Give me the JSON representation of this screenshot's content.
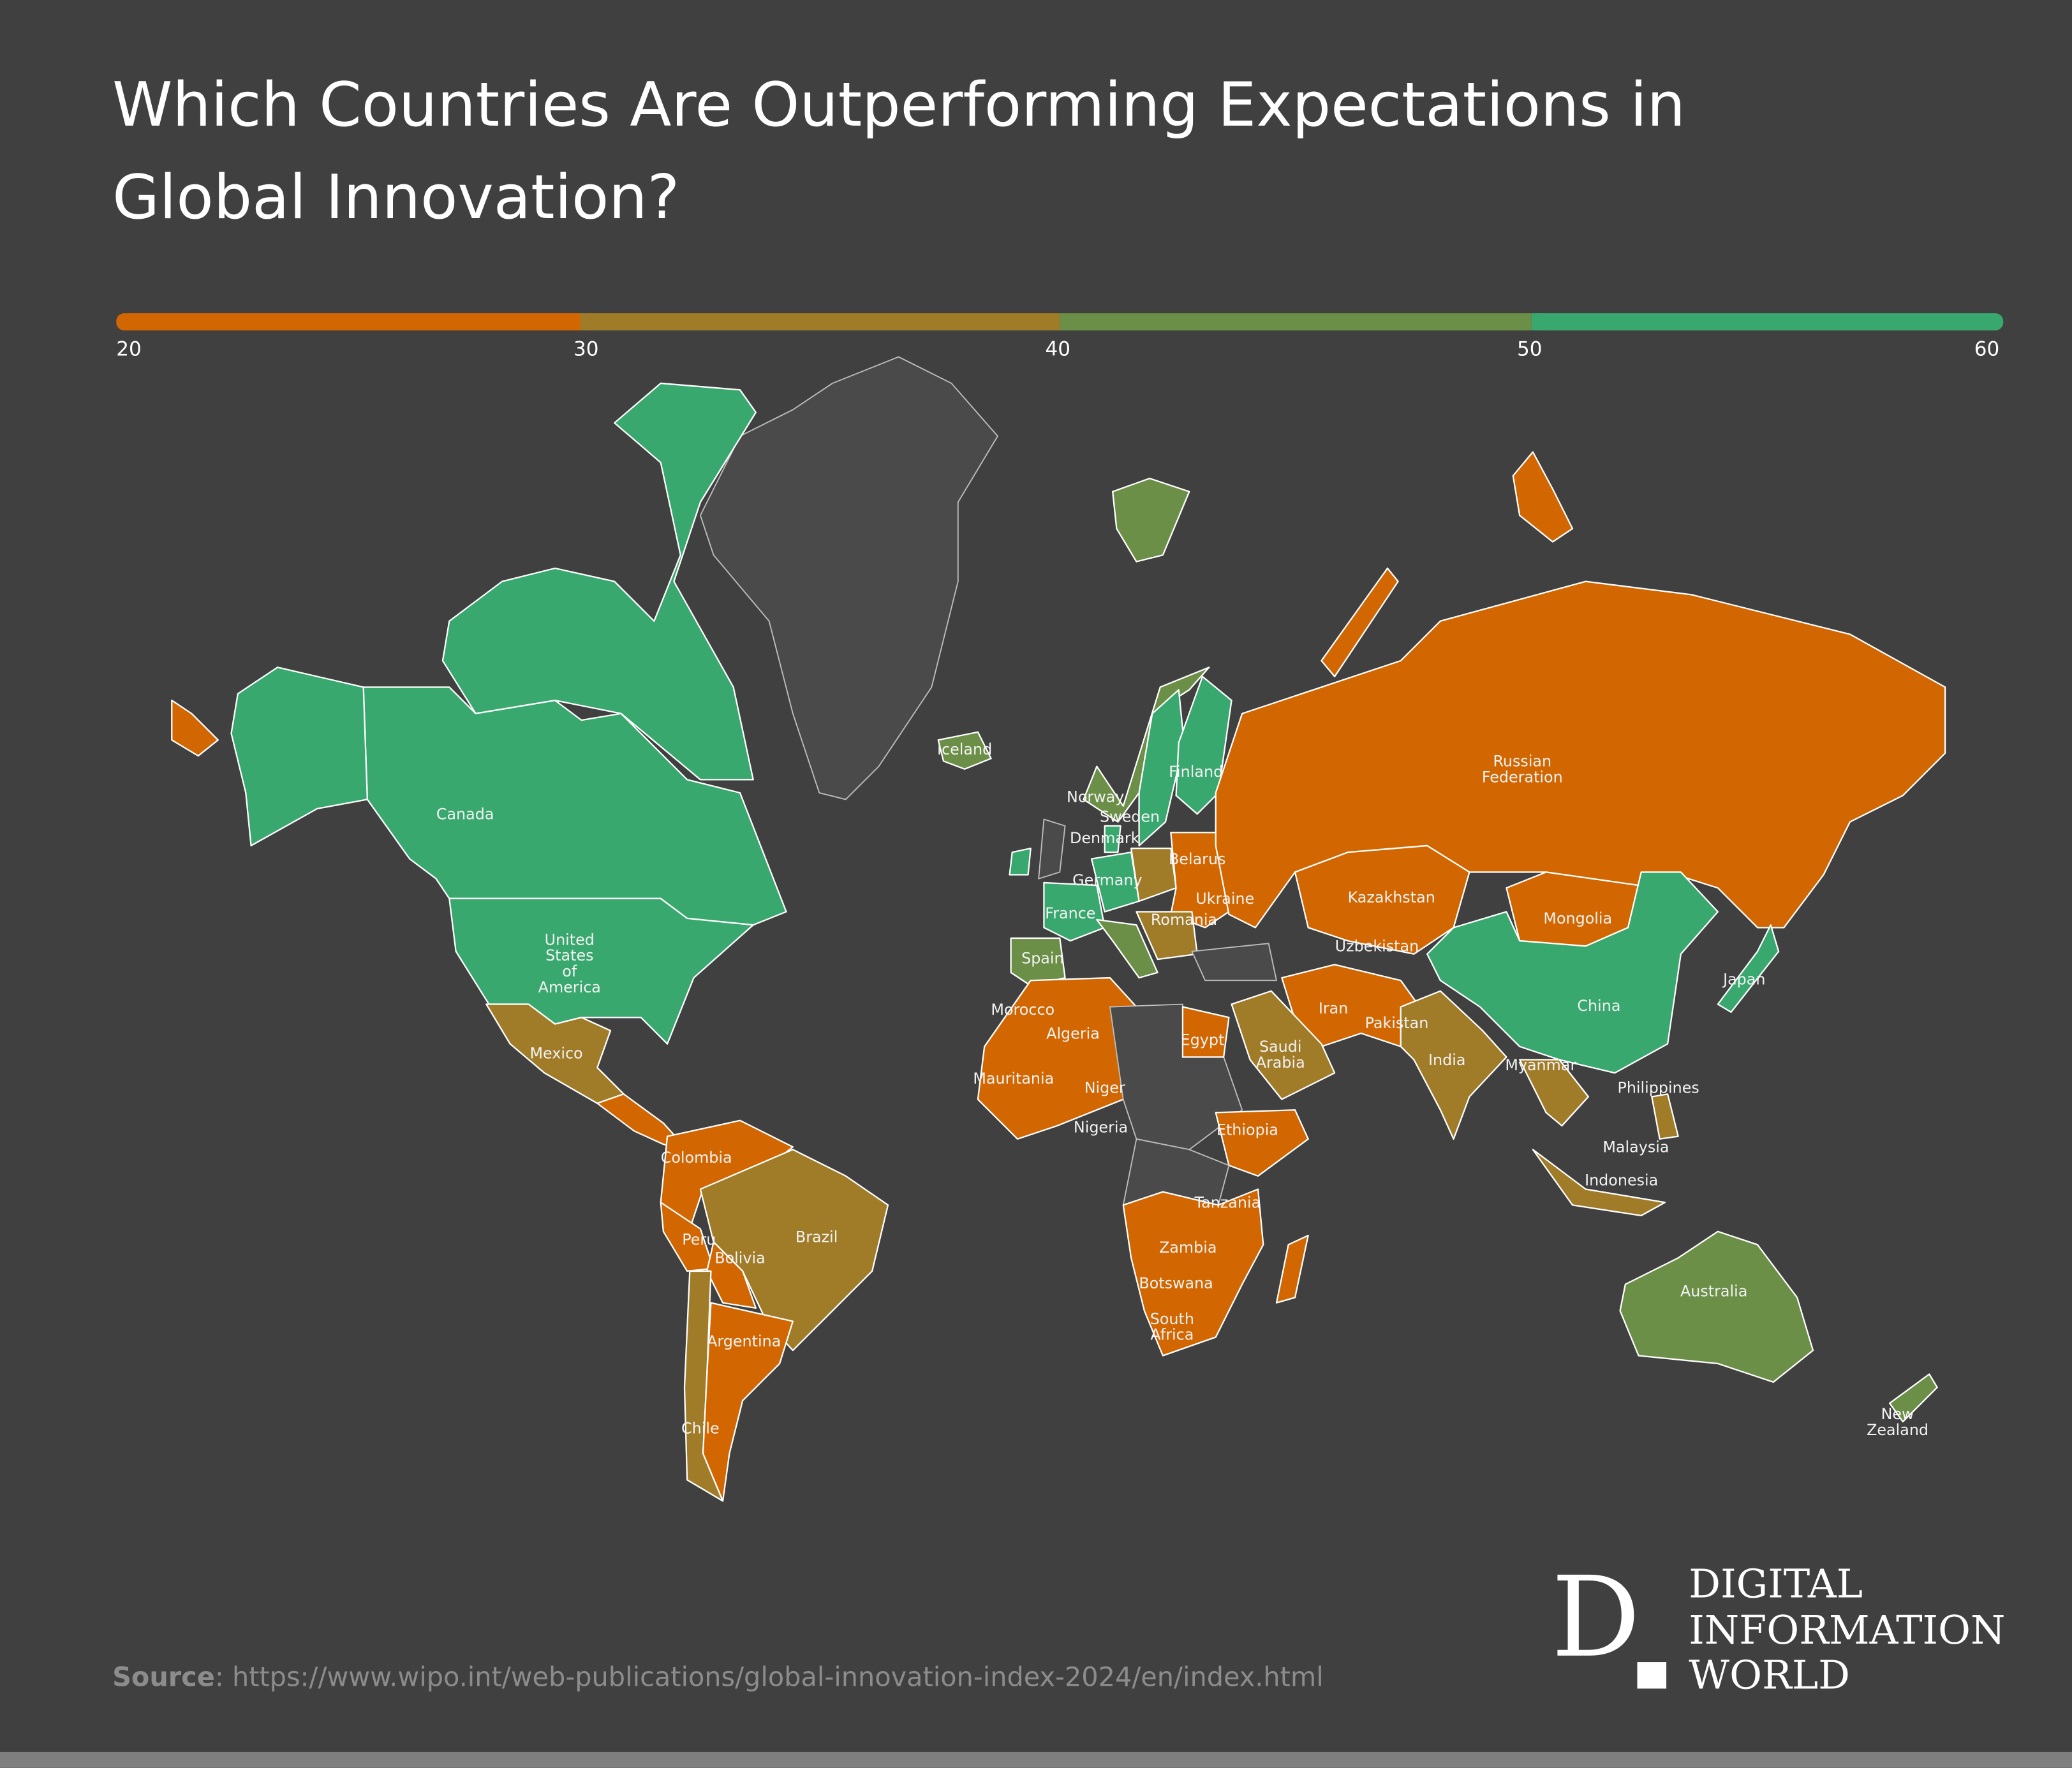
{
  "title": {
    "line1": "Which Countries Are Outperforming Expectations in",
    "line2": "Global Innovation?"
  },
  "legend": {
    "ticks": [
      "20",
      "30",
      "40",
      "50",
      "60"
    ],
    "colors": [
      "#D26600",
      "#A07B28",
      "#6B8F47",
      "#38A86E"
    ]
  },
  "countries": {
    "canada": "Canada",
    "usa_1": "United",
    "usa_2": "States",
    "usa_3": "of",
    "usa_4": "America",
    "mexico": "Mexico",
    "colombia": "Colombia",
    "peru": "Peru",
    "bolivia": "Bolivia",
    "brazil": "Brazil",
    "argentina": "Argentina",
    "chile": "Chile",
    "iceland": "Iceland",
    "norway": "Norway",
    "sweden": "Sweden",
    "finland": "Finland",
    "denmark": "Denmark",
    "germany": "Germany",
    "france": "France",
    "spain": "Spain",
    "belarus": "Belarus",
    "ukraine": "Ukraine",
    "romania": "Romania",
    "russia_1": "Russian",
    "russia_2": "Federation",
    "kazakhstan": "Kazakhstan",
    "mongolia": "Mongolia",
    "uzbekistan": "Uzbekistan",
    "china": "China",
    "japan": "Japan",
    "iran": "Iran",
    "pakistan": "Pakistan",
    "india": "India",
    "myanmar": "Myanmar",
    "saudi_1": "Saudi",
    "saudi_2": "Arabia",
    "egypt": "Egypt",
    "morocco": "Morocco",
    "algeria": "Algeria",
    "mauritania": "Mauritania",
    "niger": "Niger",
    "nigeria": "Nigeria",
    "ethiopia": "Ethiopia",
    "tanzania": "Tanzania",
    "zambia": "Zambia",
    "botswana": "Botswana",
    "south_africa_1": "South",
    "south_africa_2": "Africa",
    "philippines": "Philippines",
    "malaysia": "Malaysia",
    "indonesia": "Indonesia",
    "australia": "Australia",
    "new_zealand_1": "New",
    "new_zealand_2": "Zealand"
  },
  "source": {
    "label": "Source",
    "url": ": https://www.wipo.int/web-publications/global-innovation-index-2024/en/index.html"
  },
  "logo": {
    "mark": "D",
    "line1": "DIGITAL",
    "line2": "INFORMATION",
    "line3": "WORLD"
  }
}
